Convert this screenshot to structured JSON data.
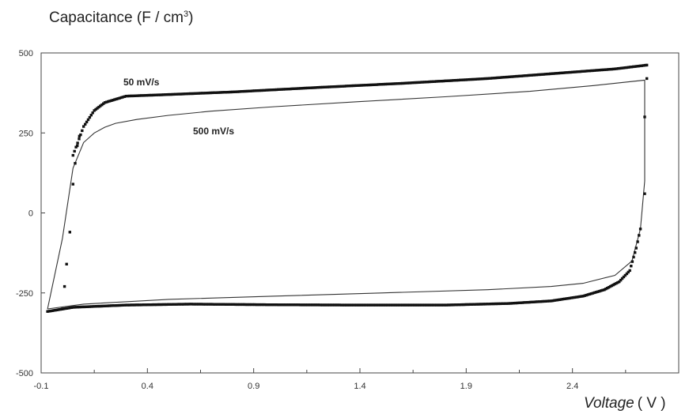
{
  "chart_data": {
    "type": "scatter",
    "ylabel_main": "Capacitance (F / cm",
    "ylabel_sup": "3",
    "ylabel_close": ")",
    "xlabel_main": "Voltage",
    "xlabel_unit": "( V )",
    "xlim": [
      -0.1,
      2.9
    ],
    "ylim": [
      -500,
      500
    ],
    "xticks": [
      "-0.1",
      "0.4",
      "0.9",
      "1.4",
      "1.9",
      "2.4"
    ],
    "yticks": [
      "500",
      "250",
      "0",
      "-250",
      "-500"
    ],
    "annotations": [
      "50 mV/s",
      "500 mV/s"
    ],
    "series": [
      {
        "name": "50 mV/s",
        "style": "dots",
        "color": "#111111",
        "upper_x": [
          0.05,
          0.1,
          0.15,
          0.2,
          0.3,
          0.5,
          0.8,
          1.2,
          1.6,
          2.0,
          2.4,
          2.6,
          2.75
        ],
        "upper_y": [
          180,
          270,
          320,
          345,
          365,
          370,
          378,
          392,
          405,
          420,
          440,
          450,
          462
        ],
        "rise_x": [
          0.0,
          0.01,
          0.02,
          0.035,
          0.05,
          0.06,
          0.07,
          0.08
        ],
        "rise_y": [
          -300,
          -230,
          -160,
          -60,
          90,
          155,
          210,
          240
        ],
        "lower_x": [
          -0.07,
          0.05,
          0.3,
          0.6,
          1.0,
          1.4,
          1.8,
          2.1,
          2.3,
          2.45,
          2.55,
          2.62,
          2.67,
          2.7,
          2.72
        ],
        "lower_y": [
          -308,
          -295,
          -288,
          -285,
          -287,
          -288,
          -288,
          -283,
          -275,
          -260,
          -240,
          -215,
          -180,
          -110,
          -50
        ],
        "drop_x": [
          2.75,
          2.74,
          2.74
        ],
        "drop_y": [
          420,
          300,
          60
        ]
      },
      {
        "name": "500 mV/s",
        "style": "line",
        "color": "#333333",
        "x": [
          -0.07,
          0.0,
          0.05,
          0.1,
          0.15,
          0.2,
          0.25,
          0.35,
          0.5,
          0.7,
          1.0,
          1.4,
          1.8,
          2.2,
          2.5,
          2.74,
          2.74,
          2.72,
          2.68,
          2.6,
          2.45,
          2.3,
          2.0,
          1.5,
          1.0,
          0.5,
          0.1,
          -0.07
        ],
        "y": [
          -300,
          -80,
          140,
          220,
          250,
          268,
          280,
          292,
          305,
          318,
          332,
          348,
          363,
          380,
          398,
          415,
          100,
          -50,
          -150,
          -195,
          -220,
          -230,
          -240,
          -250,
          -260,
          -270,
          -285,
          -300
        ]
      }
    ]
  }
}
